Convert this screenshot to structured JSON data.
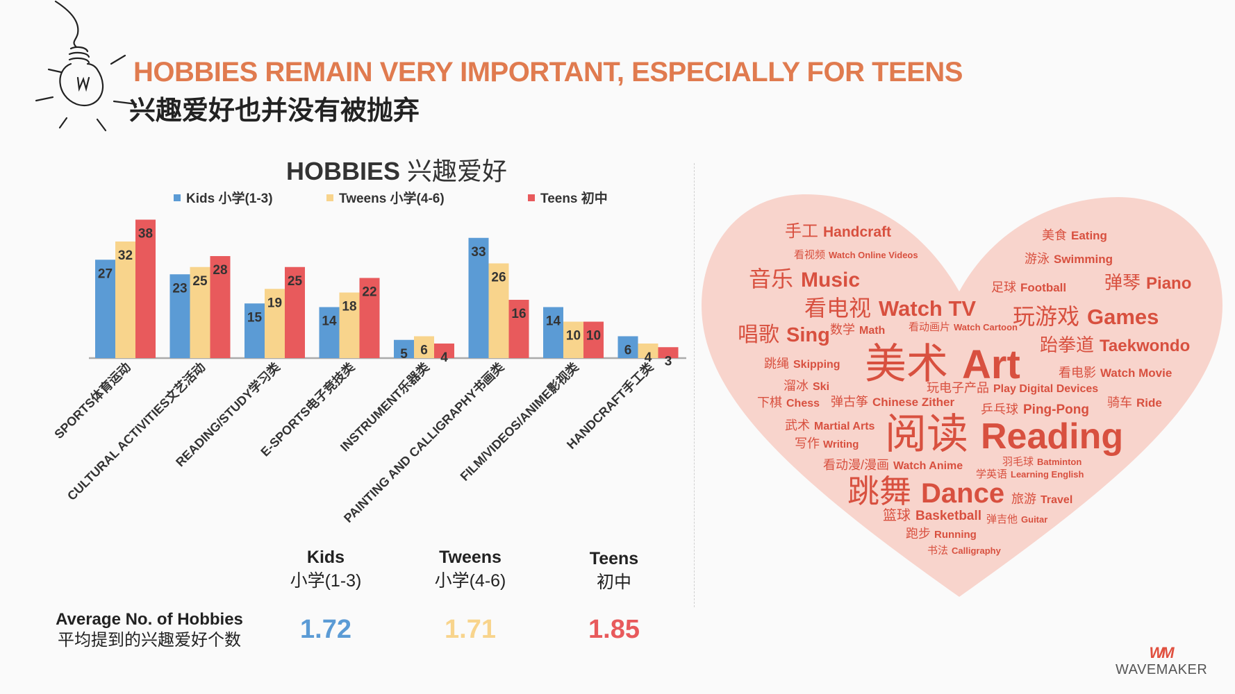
{
  "header": {
    "title_en": "HOBBIES REMAIN VERY IMPORTANT, ESPECIALLY FOR TEENS",
    "title_cn": "兴趣爱好也并没有被抛弃"
  },
  "chart_data": {
    "type": "bar",
    "title_en": "HOBBIES",
    "title_cn": "兴趣爱好",
    "categories": [
      "SPORTS体育运动",
      "CULTURAL ACTIVITIES文艺活动",
      "READING/STUDY学习类",
      "E-SPORTS电子竞技类",
      "INSTRUMENT乐器类",
      "PAINTING AND CALLIGRAPHY书画类",
      "FILM/VIDEOS/ANIME影视类",
      "HANDCRAFT手工类"
    ],
    "series": [
      {
        "name": "Kids 小学(1-3)",
        "color": "#5b9bd5",
        "values": [
          27,
          23,
          15,
          14,
          5,
          33,
          14,
          6
        ]
      },
      {
        "name": "Tweens 小学(4-6)",
        "color": "#f8d48c",
        "values": [
          32,
          25,
          19,
          18,
          6,
          26,
          10,
          4
        ]
      },
      {
        "name": "Teens 初中",
        "color": "#e85a5c",
        "values": [
          38,
          28,
          25,
          22,
          4,
          16,
          10,
          3
        ]
      }
    ],
    "ylim": [
      0,
      40
    ],
    "legend": "top",
    "grid": false
  },
  "averages": {
    "label_en": "Average No. of Hobbies",
    "label_cn": "平均提到的兴趣爱好个数",
    "groups": [
      {
        "name_en": "Kids",
        "name_cn": "小学(1-3)",
        "value": "1.72",
        "color": "#5b9bd5"
      },
      {
        "name_en": "Tweens",
        "name_cn": "小学(4-6)",
        "value": "1.71",
        "color": "#f8d48c"
      },
      {
        "name_en": "Teens",
        "name_cn": "初中",
        "value": "1.85",
        "color": "#e85a5c"
      }
    ]
  },
  "word_cloud": {
    "heart_color": "#f8d4cc",
    "text_color": "#d8503f",
    "words": [
      {
        "cn": "手工",
        "en": "Handcraft"
      },
      {
        "cn": "美食",
        "en": "Eating"
      },
      {
        "cn": "看视频",
        "en": "Watch Online Videos"
      },
      {
        "cn": "游泳",
        "en": "Swimming"
      },
      {
        "cn": "音乐",
        "en": "Music"
      },
      {
        "cn": "足球",
        "en": "Football"
      },
      {
        "cn": "弹琴",
        "en": "Piano"
      },
      {
        "cn": "看电视",
        "en": "Watch TV"
      },
      {
        "cn": "玩游戏",
        "en": "Games"
      },
      {
        "cn": "唱歌",
        "en": "Sing"
      },
      {
        "cn": "数学",
        "en": "Math"
      },
      {
        "cn": "看动画片",
        "en": "Watch Cartoon"
      },
      {
        "cn": "跆拳道",
        "en": "Taekwondo"
      },
      {
        "cn": "美术",
        "en": "Art"
      },
      {
        "cn": "跳绳",
        "en": "Skipping"
      },
      {
        "cn": "看电影",
        "en": "Watch Movie"
      },
      {
        "cn": "溜冰",
        "en": "Ski"
      },
      {
        "cn": "玩电子产品",
        "en": "Play Digital Devices"
      },
      {
        "cn": "下棋",
        "en": "Chess"
      },
      {
        "cn": "弹古筝",
        "en": "Chinese Zither"
      },
      {
        "cn": "乒乓球",
        "en": "Ping-Pong"
      },
      {
        "cn": "骑车",
        "en": "Ride"
      },
      {
        "cn": "武术",
        "en": "Martial Arts"
      },
      {
        "cn": "阅读",
        "en": "Reading"
      },
      {
        "cn": "写作",
        "en": "Writing"
      },
      {
        "cn": "看动漫/漫画",
        "en": "Watch Anime"
      },
      {
        "cn": "羽毛球",
        "en": "Batminton"
      },
      {
        "cn": "学英语",
        "en": "Learning English"
      },
      {
        "cn": "跳舞",
        "en": "Dance"
      },
      {
        "cn": "旅游",
        "en": "Travel"
      },
      {
        "cn": "篮球",
        "en": "Basketball"
      },
      {
        "cn": "弹吉他",
        "en": "Guitar"
      },
      {
        "cn": "跑步",
        "en": "Running"
      },
      {
        "cn": "书法",
        "en": "Calligraphy"
      }
    ]
  },
  "logo": {
    "mark": "WM",
    "name": "WAVEMAKER"
  }
}
